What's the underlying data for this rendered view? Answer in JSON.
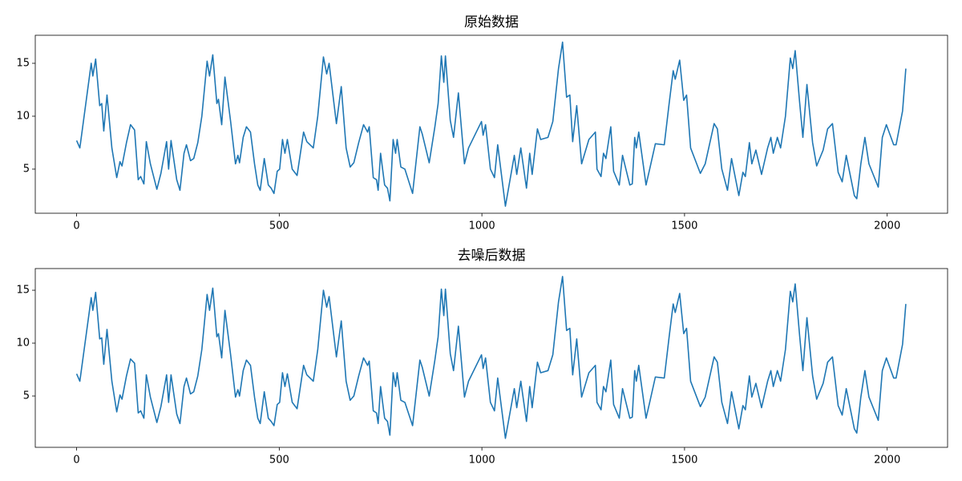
{
  "chart_data": [
    {
      "type": "line",
      "title": "原始数据",
      "color": "#1f77b4",
      "x": [
        0,
        8,
        36,
        40,
        47,
        57,
        62,
        67,
        75,
        87,
        99,
        107,
        112,
        123,
        133,
        143,
        152,
        158,
        166,
        172,
        182,
        198,
        208,
        222,
        227,
        233,
        247,
        255,
        265,
        271,
        281,
        289,
        299,
        309,
        322,
        328,
        336,
        346,
        350,
        358,
        366,
        380,
        392,
        398,
        402,
        411,
        419,
        429,
        439,
        447,
        453,
        463,
        473,
        480,
        487,
        495,
        501,
        508,
        514,
        520,
        532,
        544,
        560,
        568,
        584,
        595,
        609,
        617,
        623,
        641,
        653,
        665,
        675,
        684,
        696,
        708,
        718,
        722,
        732,
        740,
        744,
        750,
        760,
        767,
        773,
        781,
        787,
        791,
        800,
        810,
        829,
        847,
        853,
        870,
        884,
        892,
        900,
        906,
        910,
        922,
        930,
        942,
        957,
        967,
        999,
        1003,
        1009,
        1021,
        1031,
        1039,
        1058,
        1080,
        1086,
        1096,
        1110,
        1118,
        1124,
        1137,
        1145,
        1163,
        1175,
        1189,
        1199,
        1209,
        1217,
        1224,
        1234,
        1246,
        1264,
        1280,
        1284,
        1294,
        1300,
        1306,
        1318,
        1325,
        1339,
        1347,
        1365,
        1371,
        1377,
        1381,
        1387,
        1405,
        1414,
        1428,
        1450,
        1462,
        1472,
        1477,
        1488,
        1498,
        1505,
        1515,
        1539,
        1551,
        1573,
        1581,
        1592,
        1606,
        1616,
        1634,
        1644,
        1650,
        1660,
        1666,
        1676,
        1690,
        1705,
        1713,
        1719,
        1729,
        1737,
        1749,
        1761,
        1767,
        1773,
        1784,
        1792,
        1802,
        1816,
        1826,
        1842,
        1853,
        1865,
        1879,
        1889,
        1899,
        1919,
        1925,
        1935,
        1945,
        1955,
        1978,
        1988,
        1998,
        2016,
        2022,
        2038,
        2046
      ],
      "values": [
        7.7,
        7.0,
        15.0,
        13.8,
        15.4,
        11.0,
        11.2,
        8.6,
        12.0,
        7.0,
        4.2,
        5.7,
        5.3,
        7.5,
        9.2,
        8.7,
        4.0,
        4.3,
        3.6,
        7.6,
        5.5,
        3.1,
        4.6,
        7.6,
        5.0,
        7.7,
        4.0,
        3.0,
        6.5,
        7.3,
        5.8,
        6.0,
        7.5,
        10.0,
        15.2,
        13.8,
        15.8,
        11.2,
        11.6,
        9.2,
        13.7,
        9.5,
        5.5,
        6.3,
        5.6,
        8.0,
        9.0,
        8.5,
        5.5,
        3.5,
        3.0,
        6.0,
        3.5,
        3.2,
        2.7,
        4.8,
        5.0,
        7.8,
        6.5,
        7.8,
        5.0,
        4.4,
        8.5,
        7.6,
        7.0,
        10.0,
        15.6,
        14.0,
        15.0,
        9.3,
        12.8,
        7.0,
        5.2,
        5.6,
        7.5,
        9.2,
        8.5,
        9.0,
        4.2,
        4.0,
        3.0,
        6.5,
        3.5,
        3.2,
        2.0,
        7.8,
        6.5,
        7.8,
        5.2,
        5.0,
        2.7,
        9.0,
        8.3,
        5.6,
        9.0,
        11.2,
        15.7,
        13.2,
        15.7,
        9.6,
        8.0,
        12.2,
        5.5,
        7.0,
        9.5,
        8.2,
        9.2,
        5.0,
        4.2,
        7.3,
        1.5,
        6.3,
        4.5,
        7.0,
        3.2,
        6.5,
        4.5,
        8.8,
        7.8,
        8.0,
        9.5,
        14.5,
        17.0,
        11.8,
        12.0,
        7.6,
        11.0,
        5.5,
        7.8,
        8.5,
        5.0,
        4.3,
        6.5,
        6.0,
        9.0,
        4.8,
        3.5,
        6.3,
        3.5,
        3.6,
        8.0,
        7.0,
        8.5,
        3.5,
        5.0,
        7.4,
        7.3,
        11.2,
        14.3,
        13.5,
        15.3,
        11.5,
        12.0,
        7.0,
        4.6,
        5.5,
        9.3,
        8.8,
        5.0,
        3.0,
        6.0,
        2.5,
        4.7,
        4.3,
        7.5,
        5.5,
        6.8,
        4.5,
        7.0,
        8.0,
        6.5,
        8.0,
        7.0,
        10.0,
        15.5,
        14.5,
        16.2,
        11.3,
        8.0,
        13.0,
        7.5,
        5.3,
        6.8,
        8.8,
        9.3,
        4.7,
        3.8,
        6.3,
        2.5,
        2.2,
        5.5,
        8.0,
        5.5,
        3.3,
        8.0,
        9.2,
        7.3,
        7.3,
        10.5,
        14.5
      ],
      "xlim": [
        -102,
        2149
      ],
      "xticks": [
        0,
        500,
        1000,
        1500,
        2000
      ],
      "ylim": [
        0.83,
        17.65
      ],
      "yticks": [
        5,
        10,
        15
      ]
    },
    {
      "type": "line",
      "title": "去噪后数据",
      "color": "#1f77b4",
      "x": [
        0,
        8,
        36,
        40,
        47,
        57,
        62,
        67,
        75,
        87,
        99,
        107,
        112,
        123,
        133,
        143,
        152,
        158,
        166,
        172,
        182,
        198,
        208,
        222,
        227,
        233,
        247,
        255,
        265,
        271,
        281,
        289,
        299,
        309,
        322,
        328,
        336,
        346,
        350,
        358,
        366,
        380,
        392,
        398,
        402,
        411,
        419,
        429,
        439,
        447,
        453,
        463,
        473,
        480,
        487,
        495,
        501,
        508,
        514,
        520,
        532,
        544,
        560,
        568,
        584,
        595,
        609,
        617,
        623,
        641,
        653,
        665,
        675,
        684,
        696,
        708,
        718,
        722,
        732,
        740,
        744,
        750,
        760,
        767,
        773,
        781,
        787,
        791,
        800,
        810,
        829,
        847,
        853,
        870,
        884,
        892,
        900,
        906,
        910,
        922,
        930,
        942,
        957,
        967,
        999,
        1003,
        1009,
        1021,
        1031,
        1039,
        1058,
        1080,
        1086,
        1096,
        1110,
        1118,
        1124,
        1137,
        1145,
        1163,
        1175,
        1189,
        1199,
        1209,
        1217,
        1224,
        1234,
        1246,
        1264,
        1280,
        1284,
        1294,
        1300,
        1306,
        1318,
        1325,
        1339,
        1347,
        1365,
        1371,
        1377,
        1381,
        1387,
        1405,
        1414,
        1428,
        1450,
        1462,
        1472,
        1477,
        1488,
        1498,
        1505,
        1515,
        1539,
        1551,
        1573,
        1581,
        1592,
        1606,
        1616,
        1634,
        1644,
        1650,
        1660,
        1666,
        1676,
        1690,
        1705,
        1713,
        1719,
        1729,
        1737,
        1749,
        1761,
        1767,
        1773,
        1784,
        1792,
        1802,
        1816,
        1826,
        1842,
        1853,
        1865,
        1879,
        1889,
        1899,
        1919,
        1925,
        1935,
        1945,
        1955,
        1978,
        1988,
        1998,
        2016,
        2022,
        2038,
        2046
      ],
      "values": [
        7.1,
        6.4,
        14.3,
        13.1,
        14.8,
        10.4,
        10.5,
        8.0,
        11.3,
        6.4,
        3.5,
        5.1,
        4.7,
        6.9,
        8.5,
        8.1,
        3.4,
        3.6,
        2.9,
        7.0,
        4.9,
        2.5,
        4.0,
        7.0,
        4.4,
        7.0,
        3.3,
        2.4,
        5.9,
        6.7,
        5.2,
        5.4,
        6.9,
        9.4,
        14.6,
        13.1,
        15.2,
        10.6,
        10.9,
        8.6,
        13.1,
        8.9,
        4.9,
        5.6,
        5.0,
        7.4,
        8.4,
        7.9,
        4.9,
        2.9,
        2.4,
        5.4,
        2.9,
        2.6,
        2.2,
        4.2,
        4.4,
        7.2,
        5.9,
        7.1,
        4.4,
        3.8,
        7.9,
        7.0,
        6.4,
        9.4,
        15.0,
        13.4,
        14.4,
        8.7,
        12.1,
        6.4,
        4.6,
        5.0,
        6.9,
        8.6,
        7.9,
        8.3,
        3.6,
        3.4,
        2.4,
        5.9,
        2.9,
        2.6,
        1.3,
        7.2,
        5.9,
        7.2,
        4.6,
        4.4,
        2.2,
        8.4,
        7.7,
        5.0,
        8.4,
        10.6,
        15.1,
        12.6,
        15.1,
        9.0,
        7.4,
        11.6,
        4.9,
        6.4,
        8.9,
        7.6,
        8.6,
        4.4,
        3.6,
        6.7,
        1.0,
        5.7,
        3.9,
        6.4,
        2.6,
        5.9,
        3.9,
        8.2,
        7.2,
        7.4,
        8.9,
        13.9,
        16.3,
        11.2,
        11.4,
        7.0,
        10.4,
        4.9,
        7.2,
        7.9,
        4.4,
        3.7,
        5.9,
        5.4,
        8.4,
        4.2,
        2.9,
        5.7,
        2.9,
        3.0,
        7.4,
        6.4,
        7.9,
        2.9,
        4.4,
        6.8,
        6.7,
        10.6,
        13.7,
        12.9,
        14.7,
        10.9,
        11.4,
        6.4,
        4.0,
        4.9,
        8.7,
        8.2,
        4.4,
        2.4,
        5.4,
        1.9,
        4.1,
        3.7,
        6.9,
        4.9,
        6.2,
        3.9,
        6.4,
        7.4,
        5.9,
        7.4,
        6.4,
        9.4,
        14.9,
        13.9,
        15.6,
        10.7,
        7.4,
        12.4,
        6.9,
        4.7,
        6.2,
        8.2,
        8.7,
        4.1,
        3.2,
        5.7,
        1.9,
        1.5,
        4.9,
        7.4,
        4.9,
        2.7,
        7.4,
        8.6,
        6.7,
        6.7,
        9.9,
        13.7
      ],
      "xlim": [
        -102,
        2149
      ],
      "xticks": [
        0,
        500,
        1000,
        1500,
        2000
      ],
      "ylim": [
        0.15,
        17.05
      ],
      "yticks": [
        5,
        10,
        15
      ]
    }
  ]
}
